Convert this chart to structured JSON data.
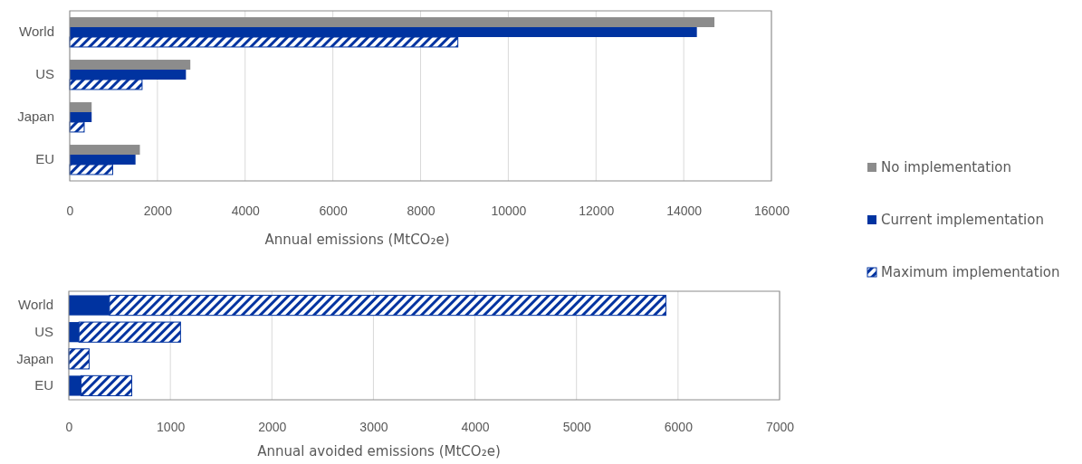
{
  "chart_data": [
    {
      "type": "bar",
      "orientation": "horizontal",
      "categories": [
        "World",
        "US",
        "Japan",
        "EU"
      ],
      "xlabel": "Annual emissions (MtCO₂e)",
      "xlim": [
        0,
        16000
      ],
      "xticks": [
        0,
        2000,
        4000,
        6000,
        8000,
        10000,
        12000,
        14000,
        16000
      ],
      "grid": "x",
      "legend": "right",
      "series": [
        {
          "name": "No implementation",
          "color": "#8c8c8c",
          "values": [
            14700,
            2750,
            500,
            1600
          ]
        },
        {
          "name": "Current implementation",
          "color": "#0033a0",
          "values": [
            14300,
            2650,
            500,
            1500
          ]
        },
        {
          "name": "Maximum implementation",
          "color": "#0033a0",
          "values": [
            8850,
            1650,
            330,
            980
          ]
        }
      ]
    },
    {
      "type": "bar",
      "orientation": "horizontal",
      "stacked": true,
      "categories": [
        "World",
        "US",
        "Japan",
        "EU"
      ],
      "xlabel": "Annual avoided emissions (MtCO₂e)",
      "xlim": [
        0,
        7000
      ],
      "xticks": [
        0,
        1000,
        2000,
        3000,
        4000,
        5000,
        6000,
        7000
      ],
      "grid": "x",
      "series": [
        {
          "color": "#0033a0",
          "values": [
            400,
            100,
            0,
            120
          ]
        },
        {
          "color": "#0033a0",
          "values": [
            5480,
            1000,
            200,
            500
          ]
        }
      ]
    }
  ]
}
